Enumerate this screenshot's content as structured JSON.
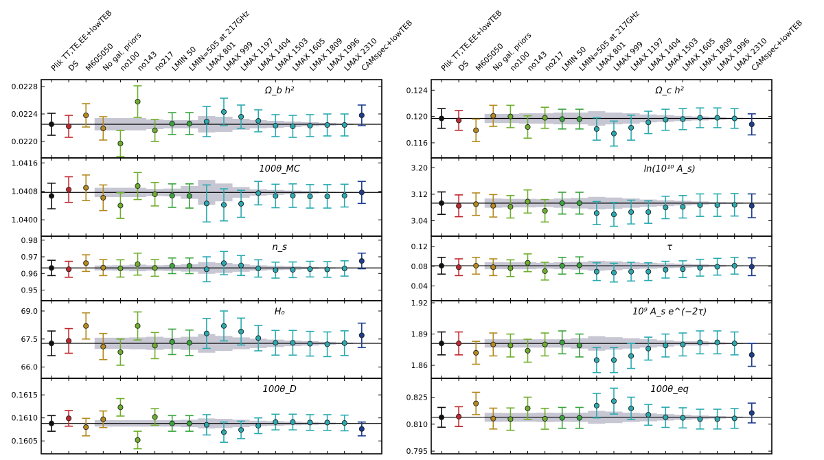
{
  "chart_data": {
    "type": "scatter",
    "description_kind": "multi-panel error-bar comparison",
    "categories": [
      "Plik TT,TE,EE+lowTEB",
      "DS",
      "M605050",
      "No gal. priors",
      "no100",
      "no143",
      "no217",
      "LMIN 50",
      "LMIN=505 at 217GHz",
      "LMAX 801",
      "LMAX 999",
      "LMAX 1197",
      "LMAX 1404",
      "LMAX 1503",
      "LMAX 1605",
      "LMAX 1809",
      "LMAX 1996",
      "LMAX 2310",
      "CAMspec+lowTEB"
    ],
    "colors": [
      "#111111",
      "#c0272d",
      "#b58a1e",
      "#b58a1e",
      "#6fae2c",
      "#6fae2c",
      "#6fae2c",
      "#3aa53e",
      "#3aa53e",
      "#2aaab0",
      "#2aaab0",
      "#2aaab0",
      "#2aaab0",
      "#2aaab0",
      "#2aaab0",
      "#2aaab0",
      "#2aaab0",
      "#2aaab0",
      "#1d3d8f"
    ],
    "band_color": "#c7c6d3",
    "panels": [
      {
        "title": "Ω_b h²",
        "ylim": [
          0.02176,
          0.0229
        ],
        "ticks": [
          0.022,
          0.0224,
          0.0228
        ],
        "tick_labels": [
          "0.0220",
          "0.0224",
          "0.0228"
        ],
        "ref": 0.02225,
        "values": [
          0.02225,
          0.02222,
          0.02238,
          0.02219,
          0.02197,
          0.02258,
          0.02216,
          0.02226,
          0.02226,
          0.02229,
          0.02243,
          0.02236,
          0.0223,
          0.02223,
          0.02222,
          0.02223,
          0.02224,
          0.02224,
          0.02238
        ],
        "errors": [
          0.00016,
          0.00016,
          0.00017,
          0.00017,
          0.00019,
          0.00023,
          0.00016,
          0.00016,
          0.00016,
          0.00022,
          0.0002,
          0.00017,
          0.00016,
          0.00016,
          0.00016,
          0.00016,
          0.00016,
          0.00016,
          0.00015
        ],
        "band": [
          0,
          0,
          0,
          9e-05,
          9e-05,
          9e-05,
          7e-05,
          6e-05,
          6e-05,
          0.00012,
          0.00011,
          8e-05,
          6e-05,
          5e-05,
          4e-05,
          3e-05,
          2e-05,
          1e-05,
          0
        ]
      },
      {
        "title": "Ω_c h²",
        "ylim": [
          0.1137,
          0.1256
        ],
        "ticks": [
          0.116,
          0.12,
          0.124
        ],
        "tick_labels": [
          "0.116",
          "0.120",
          "0.124"
        ],
        "ref": 0.1197,
        "values": [
          0.1197,
          0.1194,
          0.1179,
          0.1201,
          0.12,
          0.1184,
          0.1198,
          0.1196,
          0.1196,
          0.1181,
          0.1174,
          0.1183,
          0.1191,
          0.1195,
          0.1196,
          0.1198,
          0.1198,
          0.1197,
          0.1188
        ],
        "errors": [
          0.0015,
          0.0015,
          0.0017,
          0.0016,
          0.0017,
          0.0017,
          0.0016,
          0.0015,
          0.0015,
          0.0017,
          0.0019,
          0.0019,
          0.0017,
          0.0016,
          0.0016,
          0.0015,
          0.0015,
          0.0015,
          0.0016
        ],
        "band": [
          0,
          0,
          0,
          0.0007,
          0.0007,
          0.0008,
          0.0008,
          0.0009,
          0.0009,
          0.0011,
          0.0009,
          0.0008,
          0.0006,
          0.0005,
          0.0004,
          0.0003,
          0.0002,
          0.0001,
          0
        ]
      },
      {
        "title": "ln(10¹⁰ A_s)",
        "ylim": [
          2.993,
          3.23
        ],
        "ticks": [
          3.04,
          3.12,
          3.2
        ],
        "tick_labels": [
          "3.04",
          "3.12",
          "3.20"
        ],
        "ref": 3.093,
        "values": [
          3.093,
          3.085,
          3.09,
          3.085,
          3.082,
          3.098,
          3.07,
          3.093,
          3.093,
          3.063,
          3.059,
          3.066,
          3.066,
          3.08,
          3.082,
          3.087,
          3.087,
          3.088,
          3.085
        ],
        "errors": [
          0.034,
          0.033,
          0.034,
          0.034,
          0.034,
          0.035,
          0.034,
          0.033,
          0.033,
          0.035,
          0.036,
          0.036,
          0.034,
          0.034,
          0.034,
          0.034,
          0.034,
          0.034,
          0.036
        ],
        "band": [
          0,
          0,
          0,
          0.014,
          0.013,
          0.013,
          0.012,
          0.014,
          0.016,
          0.019,
          0.017,
          0.014,
          0.011,
          0.009,
          0.007,
          0.005,
          0.003,
          0.002,
          0
        ]
      },
      {
        "title": "100θ_MC",
        "ylim": [
          1.03954,
          1.04174
        ],
        "ticks": [
          1.04,
          1.0408,
          1.0416
        ],
        "tick_labels": [
          "1.0400",
          "1.0408",
          "1.0416"
        ],
        "ref": 1.04077,
        "values": [
          1.04067,
          1.04085,
          1.0409,
          1.04062,
          1.0404,
          1.04095,
          1.04072,
          1.04068,
          1.04067,
          1.04046,
          1.04042,
          1.04045,
          1.04075,
          1.04067,
          1.04068,
          1.04066,
          1.04066,
          1.04068,
          1.04077
        ],
        "errors": [
          0.00036,
          0.00036,
          0.00036,
          0.00036,
          0.00036,
          0.00038,
          0.00033,
          0.00033,
          0.00034,
          0.00052,
          0.00045,
          0.00038,
          0.00033,
          0.00033,
          0.00033,
          0.00033,
          0.00033,
          0.00032,
          0.00031
        ],
        "band": [
          0,
          0,
          0,
          0.00013,
          0.00013,
          0.00013,
          0.0001,
          0.00011,
          0.00018,
          0.00035,
          0.00025,
          0.00015,
          9e-05,
          7e-05,
          5e-05,
          4e-05,
          2e-05,
          1e-05,
          0
        ]
      },
      {
        "title": "τ",
        "ylim": [
          0.01,
          0.141
        ],
        "ticks": [
          0.04,
          0.08,
          0.12
        ],
        "tick_labels": [
          "0.04",
          "0.08",
          "0.12"
        ],
        "ref": 0.081,
        "values": [
          0.081,
          0.078,
          0.081,
          0.078,
          0.076,
          0.087,
          0.07,
          0.081,
          0.082,
          0.069,
          0.067,
          0.069,
          0.069,
          0.073,
          0.074,
          0.077,
          0.079,
          0.081,
          0.079
        ],
        "errors": [
          0.017,
          0.017,
          0.017,
          0.017,
          0.017,
          0.018,
          0.018,
          0.017,
          0.017,
          0.018,
          0.019,
          0.019,
          0.018,
          0.017,
          0.017,
          0.017,
          0.017,
          0.017,
          0.018
        ],
        "band": [
          0,
          0,
          0,
          0.007,
          0.007,
          0.007,
          0.006,
          0.007,
          0.008,
          0.01,
          0.009,
          0.007,
          0.006,
          0.005,
          0.004,
          0.003,
          0.002,
          0.001,
          0
        ]
      },
      {
        "title": "n_s",
        "ylim": [
          0.9436,
          0.9824
        ],
        "ticks": [
          0.95,
          0.96,
          0.97,
          0.98
        ],
        "tick_labels": [
          "0.95",
          "0.96",
          "0.97",
          "0.98"
        ],
        "ref": 0.9633,
        "values": [
          0.9633,
          0.9625,
          0.9662,
          0.9635,
          0.963,
          0.9656,
          0.9633,
          0.9646,
          0.9646,
          0.9625,
          0.9662,
          0.9648,
          0.963,
          0.962,
          0.9622,
          0.9626,
          0.9624,
          0.963,
          0.9675
        ],
        "errors": [
          0.0046,
          0.0048,
          0.005,
          0.0048,
          0.0052,
          0.0066,
          0.005,
          0.0047,
          0.0047,
          0.0075,
          0.007,
          0.006,
          0.0052,
          0.0048,
          0.0047,
          0.0047,
          0.0047,
          0.0046,
          0.0047
        ],
        "band": [
          0,
          0,
          0,
          0.0015,
          0.0016,
          0.002,
          0.0016,
          0.0018,
          0.0022,
          0.0035,
          0.003,
          0.0023,
          0.0016,
          0.0013,
          0.001,
          0.0007,
          0.0004,
          0.0002,
          0
        ]
      },
      {
        "title": "10⁹ A_s e^(−2τ)",
        "ylim": [
          1.8475,
          1.922
        ],
        "ticks": [
          1.86,
          1.89,
          1.92
        ],
        "tick_labels": [
          "1.86",
          "1.89",
          "1.92"
        ],
        "ref": 1.881,
        "values": [
          1.881,
          1.881,
          1.872,
          1.88,
          1.879,
          1.874,
          1.88,
          1.882,
          1.879,
          1.865,
          1.865,
          1.869,
          1.876,
          1.879,
          1.88,
          1.882,
          1.882,
          1.881,
          1.87
        ],
        "errors": [
          0.011,
          0.011,
          0.011,
          0.011,
          0.011,
          0.011,
          0.011,
          0.011,
          0.011,
          0.012,
          0.012,
          0.012,
          0.011,
          0.011,
          0.011,
          0.011,
          0.011,
          0.011,
          0.011
        ],
        "band": [
          0,
          0,
          0,
          0.004,
          0.004,
          0.004,
          0.004,
          0.004,
          0.005,
          0.007,
          0.006,
          0.005,
          0.004,
          0.003,
          0.002,
          0.002,
          0.001,
          0.0005,
          0
        ]
      },
      {
        "title": "H₀",
        "ylim": [
          65.4,
          69.55
        ],
        "ticks": [
          66,
          67.5,
          69
        ],
        "tick_labels": [
          "66.0",
          "67.5",
          "69.0"
        ],
        "ref": 67.27,
        "values": [
          67.27,
          67.4,
          68.2,
          67.1,
          66.8,
          68.2,
          67.15,
          67.35,
          67.3,
          67.8,
          68.2,
          67.9,
          67.55,
          67.3,
          67.3,
          67.25,
          67.22,
          67.28,
          67.7
        ],
        "errors": [
          0.66,
          0.66,
          0.7,
          0.7,
          0.7,
          0.75,
          0.7,
          0.68,
          0.68,
          0.8,
          0.8,
          0.72,
          0.68,
          0.66,
          0.66,
          0.66,
          0.66,
          0.66,
          0.65
        ],
        "band": [
          0,
          0,
          0,
          0.3,
          0.3,
          0.32,
          0.35,
          0.3,
          0.35,
          0.5,
          0.4,
          0.32,
          0.25,
          0.2,
          0.15,
          0.12,
          0.08,
          0.04,
          0
        ]
      },
      {
        "title": "100θ_eq",
        "ylim": [
          0.7935,
          0.8355
        ],
        "ticks": [
          0.795,
          0.81,
          0.825
        ],
        "tick_labels": [
          "0.795",
          "0.810",
          "0.825"
        ],
        "ref": 0.8138,
        "values": [
          0.8138,
          0.8142,
          0.8215,
          0.8131,
          0.8128,
          0.8188,
          0.813,
          0.8135,
          0.8135,
          0.8203,
          0.8228,
          0.8188,
          0.8152,
          0.8138,
          0.8135,
          0.8128,
          0.8128,
          0.8132,
          0.8162
        ],
        "errors": [
          0.0055,
          0.0055,
          0.0062,
          0.0058,
          0.0062,
          0.0062,
          0.0058,
          0.0058,
          0.0058,
          0.0068,
          0.0072,
          0.0062,
          0.0058,
          0.0056,
          0.0056,
          0.0055,
          0.0055,
          0.0055,
          0.0055
        ],
        "band": [
          0,
          0,
          0,
          0.0025,
          0.0024,
          0.0024,
          0.0026,
          0.0025,
          0.0026,
          0.0036,
          0.0032,
          0.0026,
          0.0022,
          0.0018,
          0.0014,
          0.001,
          0.0007,
          0.0004,
          0
        ]
      },
      {
        "title": "100θ_D",
        "ylim": [
          0.16022,
          0.16186
        ],
        "ticks": [
          0.1605,
          0.161,
          0.1615
        ],
        "tick_labels": [
          "0.1605",
          "0.1610",
          "0.1615"
        ],
        "ref": 0.16088,
        "values": [
          0.16088,
          0.16099,
          0.1608,
          0.16097,
          0.16123,
          0.16052,
          0.16102,
          0.16088,
          0.16088,
          0.16085,
          0.16069,
          0.16074,
          0.16083,
          0.16091,
          0.16091,
          0.1609,
          0.1609,
          0.16089,
          0.16076
        ],
        "errors": [
          0.00017,
          0.00017,
          0.00019,
          0.00018,
          0.00019,
          0.00019,
          0.00018,
          0.00017,
          0.00017,
          0.00022,
          0.00022,
          0.00019,
          0.00017,
          0.00017,
          0.00017,
          0.00017,
          0.00017,
          0.00017,
          0.00015
        ],
        "band": [
          0,
          0,
          0,
          7e-05,
          7e-05,
          7e-05,
          7e-05,
          7e-05,
          8e-05,
          0.00011,
          0.0001,
          8e-05,
          6e-05,
          5e-05,
          4e-05,
          3e-05,
          2e-05,
          1e-05,
          0
        ]
      }
    ]
  }
}
